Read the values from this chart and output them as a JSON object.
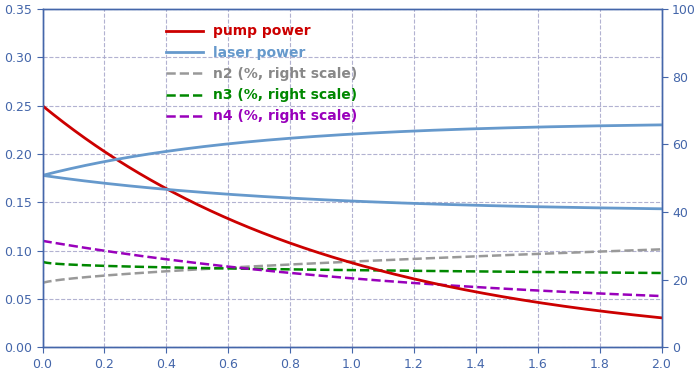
{
  "xlim": [
    0,
    2
  ],
  "ylim_left": [
    0,
    0.35
  ],
  "ylim_right": [
    0,
    100
  ],
  "pump_color": "#cc0000",
  "laser_color": "#6699cc",
  "n2_color": "#999999",
  "n3_color": "#008800",
  "n4_color": "#9900bb",
  "background_color": "#ffffff",
  "grid_color": "#aaaacc",
  "tick_color": "#4466aa",
  "spine_color": "#4466aa",
  "legend_labels": [
    "pump power",
    "laser power",
    "n2 (%, right scale)",
    "n3 (%, right scale)",
    "n4 (%, right scale)"
  ],
  "legend_text_colors": [
    "#cc0000",
    "#6699cc",
    "#888888",
    "#008800",
    "#9900bb"
  ],
  "xticks": [
    0,
    0.2,
    0.4,
    0.6,
    0.8,
    1.0,
    1.2,
    1.4,
    1.6,
    1.8,
    2.0
  ],
  "yticks_left": [
    0,
    0.05,
    0.1,
    0.15,
    0.2,
    0.25,
    0.3,
    0.35
  ],
  "yticks_right": [
    0,
    20,
    40,
    60,
    80,
    100
  ]
}
